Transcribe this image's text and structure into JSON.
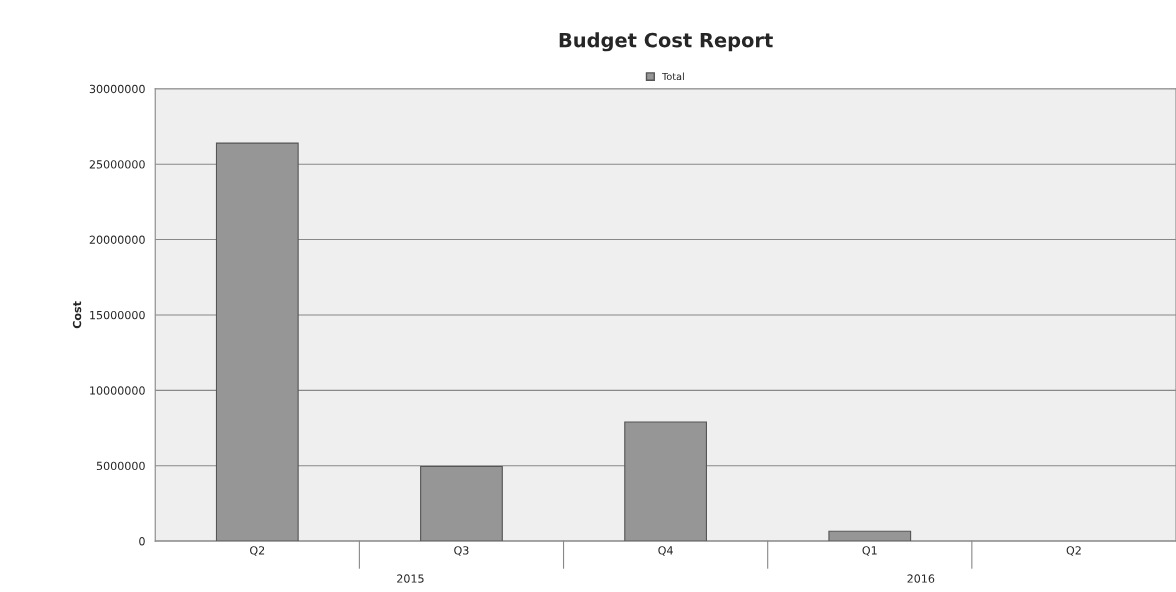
{
  "chart_data": {
    "type": "bar",
    "title": "Budget Cost Report",
    "ylabel": "Cost",
    "categories": [
      "Q2",
      "Q3",
      "Q4",
      "Q1",
      "Q2"
    ],
    "series": [
      {
        "name": "Total",
        "color": "#969696",
        "values": [
          26400000,
          4950000,
          7900000,
          650000,
          0
        ]
      }
    ],
    "ylim": [
      0,
      30000000
    ],
    "yticks": [
      0,
      5000000,
      10000000,
      15000000,
      20000000,
      25000000,
      30000000
    ],
    "grid": "y",
    "legend": "top",
    "annotations": [
      "2015",
      "2016"
    ]
  }
}
